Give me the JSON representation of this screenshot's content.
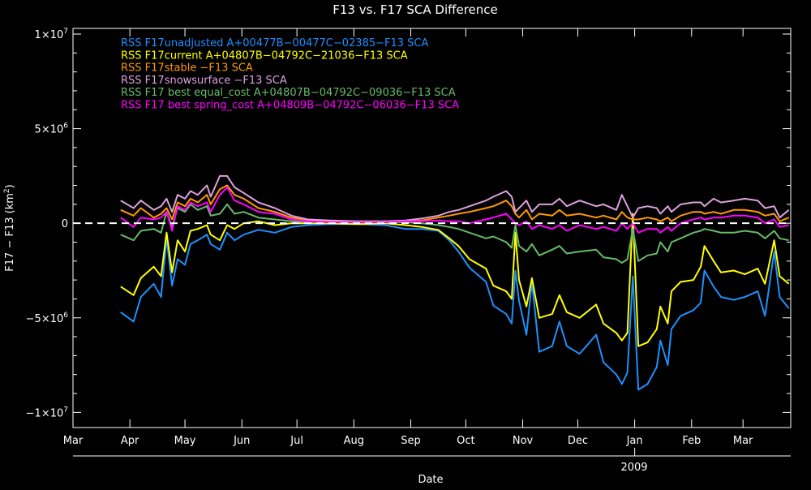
{
  "chart_data": {
    "type": "line",
    "title": "F13 vs. F17 SCA Difference",
    "xlabel": "Date",
    "ylabel": "F17 − F13 (km",
    "ylabel_sup": "2",
    "ylabel_close": ")",
    "ylim_millions": [
      -10.8,
      10.3
    ],
    "y_ticks": [
      {
        "value": 10,
        "mant": "1×10",
        "exp": "7"
      },
      {
        "value": 5,
        "mant": "5×10",
        "exp": "6"
      },
      {
        "value": 0,
        "mant": "0",
        "exp": ""
      },
      {
        "value": -5,
        "mant": "−5×10",
        "exp": "6"
      },
      {
        "value": -10,
        "mant": "−1×10",
        "exp": "7"
      }
    ],
    "x_unit": "days since Mar 1 2008",
    "xlim_days": [
      0,
      391
    ],
    "x_ticks": [
      {
        "day": 0,
        "label": "Mar"
      },
      {
        "day": 31,
        "label": "Apr"
      },
      {
        "day": 61,
        "label": "May"
      },
      {
        "day": 92,
        "label": "Jun"
      },
      {
        "day": 122,
        "label": "Jul"
      },
      {
        "day": 153,
        "label": "Aug"
      },
      {
        "day": 184,
        "label": "Sep"
      },
      {
        "day": 214,
        "label": "Oct"
      },
      {
        "day": 245,
        "label": "Nov"
      },
      {
        "day": 275,
        "label": "Dec"
      },
      {
        "day": 306,
        "label": "Jan"
      },
      {
        "day": 337,
        "label": "Feb"
      },
      {
        "day": 365,
        "label": "Mar"
      }
    ],
    "year_axis": {
      "day": 306,
      "label": "2009"
    },
    "zero_line": "dashed white",
    "legend_position": "top-left",
    "x": [
      26,
      33,
      37,
      44,
      48,
      51,
      54,
      57,
      61,
      64,
      68,
      73,
      75,
      80,
      84,
      88,
      93,
      101,
      110,
      119,
      128,
      140,
      155,
      170,
      181,
      190,
      199,
      205,
      210,
      216,
      225,
      229,
      236,
      239,
      241,
      243,
      247,
      250,
      254,
      261,
      265,
      269,
      276,
      285,
      289,
      296,
      299,
      302,
      305,
      308,
      313,
      318,
      320,
      324,
      326,
      331,
      338,
      342,
      344,
      349,
      353,
      360,
      366,
      373,
      377,
      382,
      385,
      390
    ],
    "series": [
      {
        "name": "RSS F17unadjusted A+00477B−00477C−02385−F13 SCA",
        "color": "#1e90ff",
        "values_millions": [
          -4.7,
          -5.2,
          -3.9,
          -3.2,
          -3.9,
          -0.8,
          -3.3,
          -1.9,
          -2.2,
          -1.1,
          -0.9,
          -0.6,
          -1.1,
          -1.4,
          -0.5,
          -0.9,
          -0.6,
          -0.35,
          -0.5,
          -0.2,
          -0.1,
          -0.05,
          -0.05,
          -0.1,
          -0.3,
          -0.3,
          -0.4,
          -0.9,
          -1.5,
          -2.35,
          -3.1,
          -4.35,
          -4.8,
          -5.3,
          -2.5,
          -4.1,
          -5.9,
          -3.1,
          -6.8,
          -6.5,
          -5.2,
          -6.5,
          -6.9,
          -5.9,
          -7.35,
          -8.0,
          -8.5,
          -7.9,
          -2.8,
          -8.8,
          -8.5,
          -7.6,
          -6.2,
          -7.5,
          -5.6,
          -4.9,
          -4.6,
          -4.2,
          -2.5,
          -3.35,
          -3.9,
          -4.05,
          -3.9,
          -3.6,
          -4.9,
          -1.5,
          -3.9,
          -4.5
        ]
      },
      {
        "name": "RSS F17current A+04807B−04792C−21036−F13 SCA",
        "color": "#ffff00",
        "values_millions": [
          -3.35,
          -3.8,
          -2.9,
          -2.3,
          -2.8,
          -0.5,
          -2.6,
          -0.9,
          -1.5,
          -0.4,
          -0.3,
          -0.1,
          -0.6,
          -0.9,
          -0.1,
          -0.3,
          0.0,
          0.1,
          -0.1,
          0,
          0,
          0,
          -0.05,
          0,
          -0.1,
          -0.2,
          -0.35,
          -0.8,
          -1.2,
          -1.9,
          -2.4,
          -3.3,
          -3.6,
          -4.0,
          -0.5,
          -3.0,
          -4.4,
          -2.9,
          -5.0,
          -4.8,
          -3.8,
          -4.7,
          -5.0,
          -4.3,
          -5.3,
          -5.8,
          -6.2,
          -5.8,
          0.5,
          -6.5,
          -6.3,
          -5.6,
          -4.4,
          -5.3,
          -3.6,
          -3.1,
          -3.0,
          -2.3,
          -1.2,
          -2.0,
          -2.6,
          -2.5,
          -2.7,
          -2.4,
          -3.2,
          -0.9,
          -2.8,
          -3.2
        ]
      },
      {
        "name": "RSS F17stable −F13 SCA",
        "color": "#ff9900",
        "values_millions": [
          0.7,
          0.4,
          0.8,
          0.3,
          0.5,
          0.8,
          0.2,
          1.1,
          0.9,
          1.3,
          1.1,
          1.5,
          1.0,
          1.8,
          2.0,
          1.5,
          1.3,
          0.8,
          0.6,
          0.3,
          0.15,
          0.1,
          0.05,
          0.05,
          0.1,
          0.15,
          0.3,
          0.4,
          0.5,
          0.6,
          0.8,
          0.9,
          1.2,
          0.9,
          0.5,
          0.3,
          0.7,
          0.2,
          0.5,
          0.4,
          0.7,
          0.4,
          0.5,
          0.3,
          0.4,
          0.2,
          0.6,
          0.3,
          0.2,
          0.2,
          0.3,
          0.2,
          0.1,
          0.3,
          0.1,
          0.4,
          0.6,
          0.6,
          0.5,
          0.6,
          0.5,
          0.7,
          0.7,
          0.6,
          0.4,
          0.5,
          0.1,
          0.3
        ]
      },
      {
        "name": "RSS F17snowsurface −F13 SCA",
        "color": "#dda0dd",
        "values_millions": [
          1.2,
          0.8,
          1.2,
          0.7,
          0.9,
          1.3,
          0.6,
          1.5,
          1.3,
          1.7,
          1.5,
          2.0,
          1.4,
          2.5,
          2.5,
          1.9,
          1.6,
          1.1,
          0.8,
          0.4,
          0.2,
          0.15,
          0.1,
          0.1,
          0.15,
          0.25,
          0.4,
          0.6,
          0.7,
          0.9,
          1.2,
          1.4,
          1.7,
          1.4,
          0.6,
          0.8,
          1.2,
          0.6,
          1.0,
          1.0,
          1.3,
          0.9,
          1.2,
          0.9,
          1.0,
          0.7,
          1.5,
          0.9,
          0.3,
          0.8,
          0.9,
          0.8,
          0.5,
          0.9,
          0.6,
          1.0,
          1.1,
          1.1,
          0.9,
          1.3,
          1.1,
          1.2,
          1.3,
          1.2,
          0.8,
          0.9,
          0.3,
          0.7
        ]
      },
      {
        "name": "RSS F17 best equal_cost A+04807B−04792C−09036−F13 SCA",
        "color": "#66bb6a",
        "values_millions": [
          -0.6,
          -0.9,
          -0.4,
          -0.3,
          -0.5,
          0.6,
          -0.2,
          0.8,
          0.6,
          1.0,
          0.7,
          0.9,
          0.4,
          0.5,
          1.0,
          0.5,
          0.6,
          0.3,
          0.2,
          0.1,
          0.05,
          0.05,
          0.05,
          0.05,
          0.05,
          0,
          -0.1,
          -0.2,
          -0.3,
          -0.5,
          -0.8,
          -0.7,
          -1.0,
          -1.3,
          -0.1,
          -1.2,
          -1.5,
          -1.1,
          -1.7,
          -1.4,
          -1.2,
          -1.6,
          -1.5,
          -1.4,
          -1.8,
          -1.9,
          -2.1,
          -1.9,
          -0.3,
          -2.0,
          -1.7,
          -1.6,
          -1.0,
          -1.5,
          -1.0,
          -0.8,
          -0.5,
          -0.4,
          -0.3,
          -0.4,
          -0.5,
          -0.5,
          -0.4,
          -0.5,
          -0.8,
          -0.4,
          -0.8,
          -0.9
        ]
      },
      {
        "name": "RSS F17 best spring_cost A+04809B−04792C−06036−F13 SCA",
        "color": "#ff00ff",
        "values_millions": [
          0.3,
          -0.2,
          0.3,
          0.2,
          0.3,
          0.6,
          -0.4,
          0.9,
          0.7,
          1.1,
          0.9,
          1.1,
          0.6,
          1.5,
          1.9,
          1.2,
          1.0,
          0.6,
          0.5,
          0.2,
          0.1,
          0.05,
          0.05,
          0.05,
          0.1,
          0.1,
          0.15,
          0.1,
          0.1,
          0.0,
          0.2,
          0.3,
          0.5,
          0.2,
          0.0,
          -0.1,
          0.1,
          -0.3,
          -0.1,
          -0.3,
          -0.1,
          -0.4,
          -0.1,
          -0.3,
          -0.2,
          -0.4,
          0.0,
          -0.3,
          0.0,
          -0.5,
          -0.3,
          -0.3,
          -0.5,
          -0.2,
          -0.4,
          0.0,
          0.2,
          0.3,
          0.2,
          0.3,
          0.3,
          0.4,
          0.4,
          0.3,
          0.0,
          0.2,
          -0.2,
          -0.1
        ]
      }
    ]
  }
}
